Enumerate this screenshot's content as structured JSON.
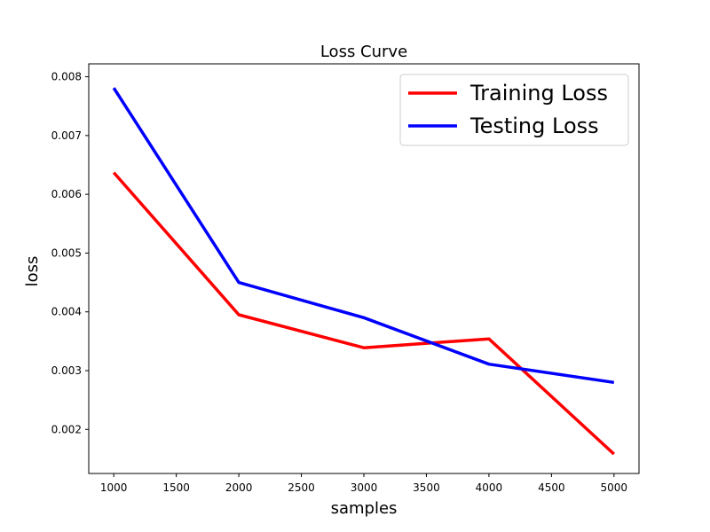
{
  "chart_data": {
    "type": "line",
    "title": "Loss Curve",
    "xlabel": "samples",
    "ylabel": "loss",
    "x": [
      1000,
      2000,
      3000,
      4000,
      5000
    ],
    "xlim": [
      800,
      5200
    ],
    "ylim": [
      0.00125,
      0.00822
    ],
    "xticks": [
      1000,
      1500,
      2000,
      2500,
      3000,
      3500,
      4000,
      4500,
      5000
    ],
    "xtick_labels": [
      "1000",
      "1500",
      "2000",
      "2500",
      "3000",
      "3500",
      "4000",
      "4500",
      "5000"
    ],
    "yticks": [
      0.002,
      0.003,
      0.004,
      0.005,
      0.006,
      0.007,
      0.008
    ],
    "ytick_labels": [
      "0.002",
      "0.003",
      "0.004",
      "0.005",
      "0.006",
      "0.007",
      "0.008"
    ],
    "grid": false,
    "legend_position": "top-right",
    "series": [
      {
        "name": "Training Loss",
        "color": "#ff0000",
        "values": [
          0.00637,
          0.00395,
          0.00339,
          0.00354,
          0.00158
        ]
      },
      {
        "name": "Testing Loss",
        "color": "#0000ff",
        "values": [
          0.00781,
          0.0045,
          0.0039,
          0.00311,
          0.0028
        ]
      }
    ]
  }
}
